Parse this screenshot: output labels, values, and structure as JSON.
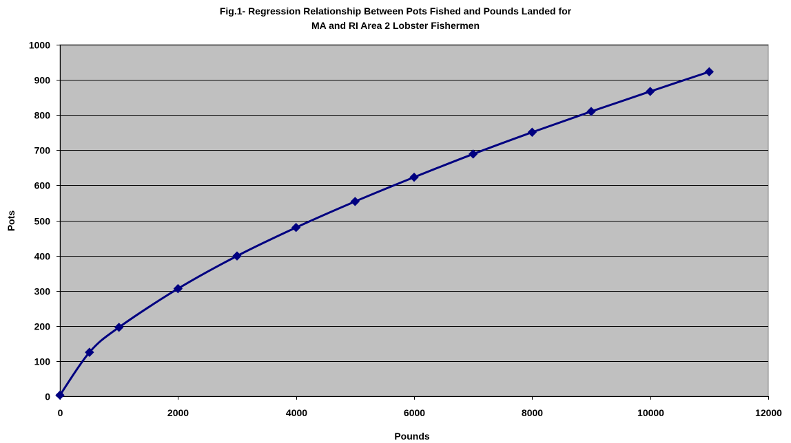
{
  "chart_data": {
    "type": "line",
    "title_lines": [
      "Fig.1- Regression Relationship Between Pots Fished and Pounds Landed for",
      "MA and RI Area 2 Lobster Fishermen"
    ],
    "xlabel": "Pounds",
    "ylabel": "Pots",
    "xlim": [
      0,
      12000
    ],
    "ylim": [
      0,
      1000
    ],
    "x_ticks": [
      "0",
      "2000",
      "4000",
      "6000",
      "8000",
      "10000",
      "12000"
    ],
    "y_ticks": [
      "0",
      "100",
      "200",
      "300",
      "400",
      "500",
      "600",
      "700",
      "800",
      "900",
      "1000"
    ],
    "grid": "horizontal",
    "legend": "none",
    "series": [
      {
        "x": [
          0,
          500,
          1000,
          2000,
          3000,
          4000,
          5000,
          6000,
          7000,
          8000,
          9000,
          10000,
          11000
        ],
        "y": [
          3,
          125,
          196,
          306,
          399,
          480,
          554,
          623,
          689,
          751,
          810,
          867,
          923
        ]
      }
    ],
    "colors": {
      "plot_background": "#C0C0C0",
      "line": "#000080",
      "marker": "#000080",
      "gridline": "#000000"
    },
    "marker": "diamond"
  }
}
